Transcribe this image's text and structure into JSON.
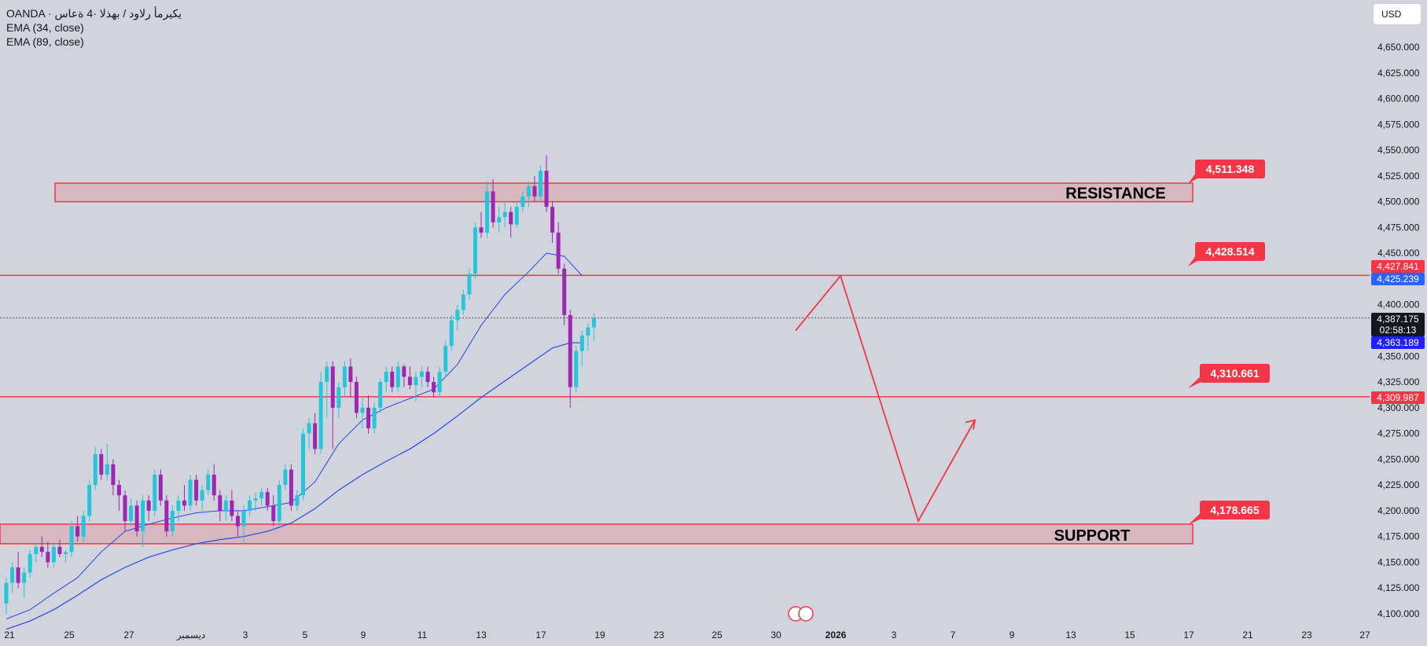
{
  "header": {
    "symbol_line": "OANDA · يكيرمأ رلاود / بهذلا ·4 ةعاس",
    "indicator_1": "EMA (34, close)",
    "indicator_2": "EMA (89, close)",
    "currency": "USD"
  },
  "colors": {
    "background": "#d1d4dc",
    "candle_up": "#26c6da",
    "candle_down": "#9c27b0",
    "ema": "#2a46e8",
    "annotation": "#f23645",
    "zone_fill": "rgba(242,54,69,0.18)",
    "current_price": "#131722",
    "ema34_label": "#2962ff",
    "ema89_label": "#1e1eff"
  },
  "chart_data": {
    "type": "candlestick",
    "title": "",
    "y_axis": {
      "ylim": [
        4090,
        4670
      ],
      "ticks": [
        "4,100.000",
        "4,125.000",
        "4,150.000",
        "4,175.000",
        "4,200.000",
        "4,225.000",
        "4,250.000",
        "4,275.000",
        "4,300.000",
        "4,325.000",
        "4,350.000",
        "4,375.000",
        "4,400.000",
        "4,425.000",
        "4,450.000",
        "4,475.000",
        "4,500.000",
        "4,525.000",
        "4,550.000",
        "4,575.000",
        "4,600.000",
        "4,625.000",
        "4,650.000"
      ]
    },
    "x_axis": {
      "labels": [
        "21",
        "25",
        "27",
        "ديسمبر",
        "3",
        "5",
        "9",
        "11",
        "13",
        "17",
        "19",
        "23",
        "25",
        "30",
        "2026",
        "3",
        "7",
        "9",
        "13",
        "15",
        "17",
        "21",
        "23",
        "27"
      ]
    },
    "ohlc": [
      [
        4110,
        4135,
        4100,
        4130
      ],
      [
        4130,
        4150,
        4120,
        4145
      ],
      [
        4145,
        4160,
        4125,
        4130
      ],
      [
        4130,
        4145,
        4115,
        4140
      ],
      [
        4140,
        4162,
        4135,
        4158
      ],
      [
        4158,
        4170,
        4150,
        4165
      ],
      [
        4165,
        4175,
        4155,
        4160
      ],
      [
        4160,
        4170,
        4145,
        4150
      ],
      [
        4150,
        4168,
        4145,
        4165
      ],
      [
        4165,
        4172,
        4155,
        4158
      ],
      [
        4158,
        4162,
        4150,
        4160
      ],
      [
        4160,
        4190,
        4155,
        4185
      ],
      [
        4185,
        4195,
        4170,
        4175
      ],
      [
        4175,
        4200,
        4170,
        4195
      ],
      [
        4195,
        4230,
        4190,
        4225
      ],
      [
        4225,
        4262,
        4220,
        4255
      ],
      [
        4255,
        4260,
        4230,
        4235
      ],
      [
        4235,
        4265,
        4230,
        4245
      ],
      [
        4245,
        4250,
        4215,
        4225
      ],
      [
        4225,
        4230,
        4200,
        4215
      ],
      [
        4215,
        4220,
        4180,
        4190
      ],
      [
        4190,
        4212,
        4185,
        4205
      ],
      [
        4205,
        4210,
        4175,
        4180
      ],
      [
        4180,
        4215,
        4165,
        4210
      ],
      [
        4210,
        4215,
        4190,
        4200
      ],
      [
        4200,
        4240,
        4195,
        4235
      ],
      [
        4235,
        4240,
        4205,
        4210
      ],
      [
        4210,
        4215,
        4175,
        4180
      ],
      [
        4180,
        4205,
        4175,
        4200
      ],
      [
        4200,
        4215,
        4190,
        4210
      ],
      [
        4210,
        4225,
        4200,
        4205
      ],
      [
        4205,
        4235,
        4200,
        4230
      ],
      [
        4230,
        4235,
        4205,
        4210
      ],
      [
        4210,
        4225,
        4200,
        4220
      ],
      [
        4220,
        4240,
        4215,
        4235
      ],
      [
        4235,
        4245,
        4210,
        4215
      ],
      [
        4215,
        4220,
        4190,
        4200
      ],
      [
        4200,
        4215,
        4190,
        4210
      ],
      [
        4210,
        4220,
        4190,
        4195
      ],
      [
        4195,
        4200,
        4175,
        4185
      ],
      [
        4185,
        4205,
        4170,
        4200
      ],
      [
        4200,
        4215,
        4195,
        4210
      ],
      [
        4210,
        4218,
        4200,
        4212
      ],
      [
        4212,
        4222,
        4205,
        4218
      ],
      [
        4218,
        4222,
        4200,
        4205
      ],
      [
        4205,
        4215,
        4185,
        4190
      ],
      [
        4190,
        4230,
        4185,
        4225
      ],
      [
        4225,
        4245,
        4220,
        4240
      ],
      [
        4240,
        4245,
        4200,
        4205
      ],
      [
        4205,
        4220,
        4200,
        4215
      ],
      [
        4215,
        4280,
        4210,
        4275
      ],
      [
        4275,
        4290,
        4260,
        4285
      ],
      [
        4285,
        4295,
        4255,
        4260
      ],
      [
        4260,
        4335,
        4255,
        4325
      ],
      [
        4325,
        4345,
        4290,
        4340
      ],
      [
        4340,
        4345,
        4260,
        4300
      ],
      [
        4300,
        4325,
        4290,
        4320
      ],
      [
        4320,
        4345,
        4310,
        4340
      ],
      [
        4340,
        4348,
        4310,
        4325
      ],
      [
        4325,
        4330,
        4290,
        4295
      ],
      [
        4295,
        4310,
        4280,
        4300
      ],
      [
        4300,
        4312,
        4275,
        4280
      ],
      [
        4280,
        4305,
        4275,
        4300
      ],
      [
        4300,
        4328,
        4295,
        4325
      ],
      [
        4325,
        4340,
        4315,
        4335
      ],
      [
        4335,
        4340,
        4315,
        4320
      ],
      [
        4320,
        4345,
        4315,
        4340
      ],
      [
        4340,
        4342,
        4320,
        4330
      ],
      [
        4330,
        4340,
        4318,
        4322
      ],
      [
        4322,
        4335,
        4305,
        4330
      ],
      [
        4330,
        4340,
        4320,
        4335
      ],
      [
        4335,
        4340,
        4320,
        4325
      ],
      [
        4325,
        4330,
        4310,
        4315
      ],
      [
        4315,
        4340,
        4310,
        4335
      ],
      [
        4335,
        4365,
        4330,
        4360
      ],
      [
        4360,
        4390,
        4355,
        4385
      ],
      [
        4385,
        4400,
        4375,
        4395
      ],
      [
        4395,
        4415,
        4390,
        4410
      ],
      [
        4410,
        4435,
        4405,
        4430
      ],
      [
        4430,
        4480,
        4425,
        4475
      ],
      [
        4475,
        4490,
        4465,
        4470
      ],
      [
        4470,
        4520,
        4465,
        4510
      ],
      [
        4510,
        4522,
        4475,
        4480
      ],
      [
        4480,
        4495,
        4470,
        4485
      ],
      [
        4485,
        4500,
        4475,
        4490
      ],
      [
        4490,
        4495,
        4465,
        4478
      ],
      [
        4478,
        4500,
        4475,
        4495
      ],
      [
        4495,
        4510,
        4490,
        4505
      ],
      [
        4505,
        4520,
        4495,
        4515
      ],
      [
        4515,
        4525,
        4500,
        4505
      ],
      [
        4505,
        4535,
        4500,
        4530
      ],
      [
        4530,
        4545,
        4490,
        4495
      ],
      [
        4495,
        4500,
        4460,
        4470
      ],
      [
        4470,
        4480,
        4430,
        4435
      ],
      [
        4435,
        4440,
        4380,
        4390
      ],
      [
        4390,
        4395,
        4300,
        4320
      ],
      [
        4320,
        4360,
        4315,
        4355
      ],
      [
        4355,
        4375,
        4340,
        4370
      ],
      [
        4370,
        4382,
        4355,
        4378
      ],
      [
        4378,
        4392,
        4365,
        4387
      ]
    ],
    "ema34": [
      [
        0,
        4095
      ],
      [
        4,
        4104
      ],
      [
        8,
        4120
      ],
      [
        12,
        4135
      ],
      [
        16,
        4160
      ],
      [
        20,
        4180
      ],
      [
        24,
        4187
      ],
      [
        28,
        4193
      ],
      [
        32,
        4198
      ],
      [
        36,
        4200
      ],
      [
        40,
        4200
      ],
      [
        44,
        4204
      ],
      [
        48,
        4208
      ],
      [
        52,
        4228
      ],
      [
        56,
        4265
      ],
      [
        60,
        4288
      ],
      [
        64,
        4300
      ],
      [
        68,
        4309
      ],
      [
        72,
        4318
      ],
      [
        76,
        4342
      ],
      [
        80,
        4380
      ],
      [
        84,
        4410
      ],
      [
        88,
        4432
      ],
      [
        91,
        4450
      ],
      [
        94,
        4447
      ],
      [
        97,
        4428
      ]
    ],
    "ema89": [
      [
        0,
        4085
      ],
      [
        4,
        4093
      ],
      [
        8,
        4104
      ],
      [
        12,
        4118
      ],
      [
        16,
        4133
      ],
      [
        20,
        4145
      ],
      [
        24,
        4155
      ],
      [
        28,
        4162
      ],
      [
        32,
        4168
      ],
      [
        36,
        4172
      ],
      [
        40,
        4175
      ],
      [
        44,
        4180
      ],
      [
        48,
        4188
      ],
      [
        52,
        4202
      ],
      [
        56,
        4220
      ],
      [
        60,
        4235
      ],
      [
        64,
        4248
      ],
      [
        68,
        4260
      ],
      [
        72,
        4275
      ],
      [
        76,
        4292
      ],
      [
        80,
        4310
      ],
      [
        84,
        4326
      ],
      [
        88,
        4342
      ],
      [
        92,
        4358
      ],
      [
        95,
        4363
      ],
      [
        97,
        4363
      ]
    ],
    "zones": [
      {
        "label": "RESISTANCE",
        "low": 4500,
        "high": 4518
      },
      {
        "label": "SUPPORT",
        "low": 4168,
        "high": 4187
      }
    ],
    "levels": [
      {
        "value": 4428.514,
        "label": "4,428.514"
      },
      {
        "value": 4310.661,
        "label": "4,310.661"
      }
    ],
    "callouts": [
      "4,511.348",
      "4,428.514",
      "4,310.661",
      "4,178.665"
    ],
    "projection": [
      [
        4375,
        "31"
      ],
      [
        4428,
        "2026"
      ],
      [
        4190,
        "4"
      ],
      [
        4288,
        "8"
      ]
    ],
    "price_labels": [
      {
        "value": 4427.841,
        "text": "4,427.841",
        "role": "resistance-level"
      },
      {
        "value": 4425.239,
        "text": "4,425.239",
        "role": "ema34"
      },
      {
        "value": 4387.175,
        "text": "4,387.175",
        "role": "current-price"
      },
      {
        "value": 4363.189,
        "text": "4,363.189",
        "role": "ema89"
      },
      {
        "value": 4309.987,
        "text": "4,309.987",
        "role": "support-level"
      }
    ],
    "countdown": "02:58:13",
    "current_price": 4387.175,
    "grid": false,
    "legend": "top-left"
  }
}
